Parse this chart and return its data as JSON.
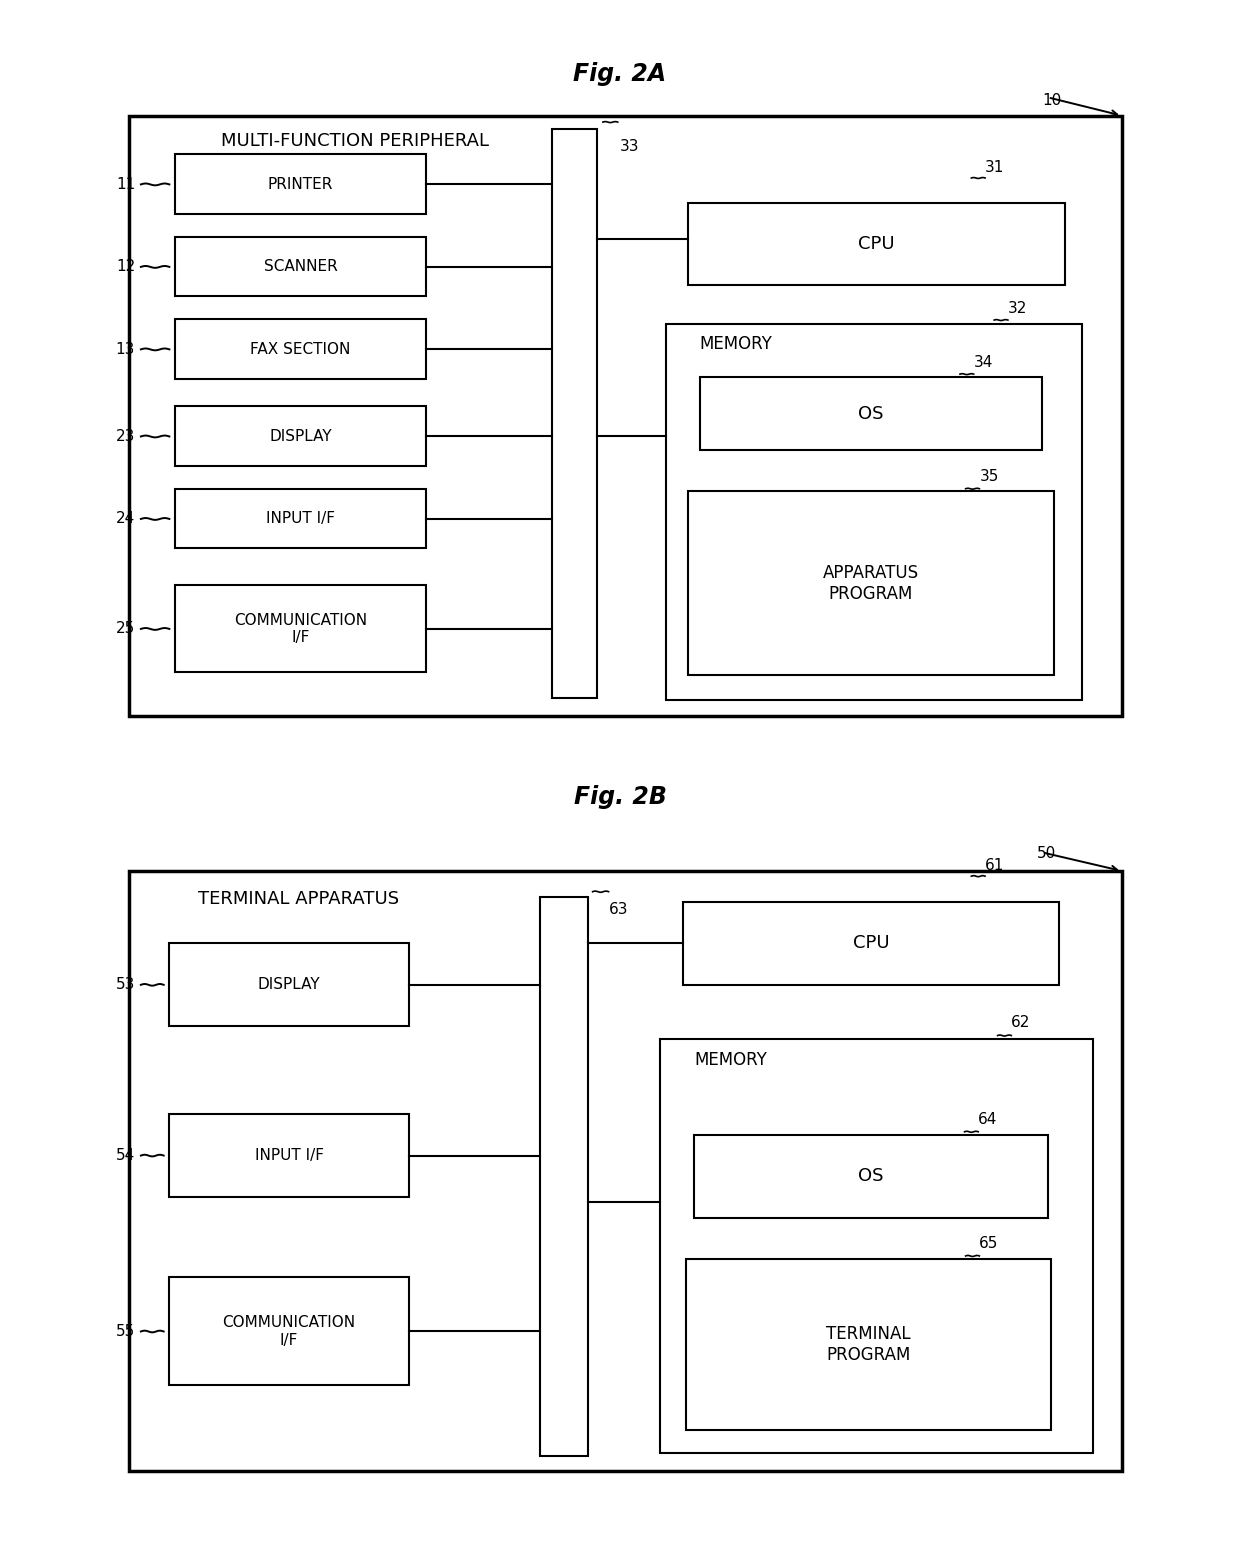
{
  "fig_title_A": "Fig. 2A",
  "fig_title_B": "Fig. 2B",
  "figA": {
    "outer_label": "MULTI-FUNCTION PERIPHERAL",
    "outer_ref": "10",
    "bus_ref": "33",
    "cpu_ref": "31",
    "memory_ref": "32",
    "os_ref": "34",
    "prog_ref": "35",
    "cpu_label": "CPU",
    "memory_label": "MEMORY",
    "os_label": "OS",
    "prog_label": "APPARATUS\nPROGRAM",
    "components": [
      {
        "label": "PRINTER",
        "ref": "11"
      },
      {
        "label": "SCANNER",
        "ref": "12"
      },
      {
        "label": "FAX SECTION",
        "ref": "13"
      },
      {
        "label": "DISPLAY",
        "ref": "23"
      },
      {
        "label": "INPUT I/F",
        "ref": "24"
      },
      {
        "label": "COMMUNICATION\nI/F",
        "ref": "25"
      }
    ]
  },
  "figB": {
    "outer_label": "TERMINAL APPARATUS",
    "outer_ref": "50",
    "bus_ref": "63",
    "cpu_ref": "61",
    "memory_ref": "62",
    "os_ref": "64",
    "prog_ref": "65",
    "cpu_label": "CPU",
    "memory_label": "MEMORY",
    "os_label": "OS",
    "prog_label": "TERMINAL\nPROGRAM",
    "components": [
      {
        "label": "DISPLAY",
        "ref": "53"
      },
      {
        "label": "INPUT I/F",
        "ref": "54"
      },
      {
        "label": "COMMUNICATION\nI/F",
        "ref": "55"
      }
    ]
  }
}
